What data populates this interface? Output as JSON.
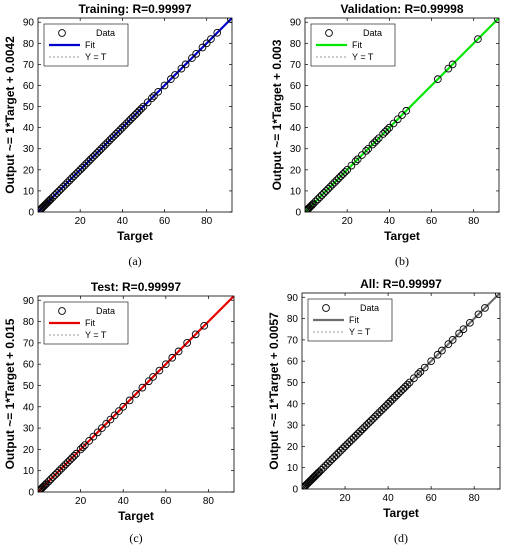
{
  "chart_data": [
    {
      "type": "scatter",
      "title": "Training: R=0.99997",
      "xlabel": "Target",
      "ylabel": "Output ~= 1*Target + 0.0042",
      "caption": "(a)",
      "xlim": [
        0,
        92
      ],
      "ylim": [
        0,
        92
      ],
      "xticks": [
        20,
        40,
        60,
        80
      ],
      "yticks": [
        0,
        10,
        20,
        30,
        40,
        50,
        60,
        70,
        80,
        90
      ],
      "fit_color": "#0000cc",
      "legend": [
        "Data",
        "Fit",
        "Y = T"
      ],
      "legend_position": "top-left",
      "fit": {
        "slope": 1,
        "intercept": 0.0042
      },
      "points": [
        0.5,
        1,
        1.5,
        2,
        2.5,
        3,
        3.5,
        4,
        4.5,
        5,
        5.5,
        6,
        7,
        8,
        9,
        10,
        11,
        12,
        13,
        14,
        15,
        16,
        17,
        18,
        19,
        20,
        21,
        22,
        23,
        24,
        25,
        26,
        27,
        28,
        29,
        30,
        31,
        32,
        33,
        34,
        35,
        36,
        37,
        38,
        39,
        40,
        41,
        42,
        43,
        44,
        45,
        46,
        47,
        48,
        49,
        50,
        52,
        54,
        55,
        57,
        60,
        63,
        65,
        68,
        70,
        73,
        75,
        78,
        80,
        82,
        85,
        91.5
      ]
    },
    {
      "type": "scatter",
      "title": "Validation: R=0.99998",
      "xlabel": "Target",
      "ylabel": "Output ~= 1*Target + 0.003",
      "caption": "(b)",
      "xlim": [
        0,
        92
      ],
      "ylim": [
        0,
        92
      ],
      "xticks": [
        20,
        40,
        60,
        80
      ],
      "yticks": [
        0,
        10,
        20,
        30,
        40,
        50,
        60,
        70,
        80,
        90
      ],
      "fit_color": "#00e600",
      "legend": [
        "Data",
        "Fit",
        "Y = T"
      ],
      "legend_position": "top-left",
      "fit": {
        "slope": 1,
        "intercept": 0.003
      },
      "points": [
        0.5,
        1,
        1.5,
        2,
        2.5,
        3,
        3.5,
        4,
        5,
        6,
        7,
        8,
        9,
        10,
        11,
        12,
        13,
        14,
        15,
        16,
        17,
        18,
        19,
        20,
        22,
        24,
        25,
        27,
        29,
        30,
        32,
        33,
        34,
        35,
        37,
        38,
        39,
        40,
        42,
        44,
        46,
        48,
        63,
        68,
        70,
        82,
        91.5
      ]
    },
    {
      "type": "scatter",
      "title": "Test: R=0.99997",
      "xlabel": "Target",
      "ylabel": "Output ~= 1*Target + 0.015",
      "caption": "(c)",
      "xlim": [
        0,
        92
      ],
      "ylim": [
        0,
        92
      ],
      "xticks": [
        20,
        40,
        60,
        80
      ],
      "yticks": [
        0,
        10,
        20,
        30,
        40,
        50,
        60,
        70,
        80,
        90
      ],
      "fit_color": "#e60000",
      "legend": [
        "Data",
        "Fit",
        "Y = T"
      ],
      "legend_position": "top-left",
      "fit": {
        "slope": 1,
        "intercept": 0.015
      },
      "points": [
        0.5,
        1,
        1.5,
        2,
        2.5,
        3,
        3.5,
        4,
        5,
        6,
        7,
        8,
        9,
        10,
        11,
        12,
        13,
        14,
        15,
        16,
        17,
        18,
        20,
        21,
        22,
        24,
        26,
        28,
        30,
        32,
        34,
        36,
        38,
        40,
        43,
        46,
        49,
        52,
        54,
        57,
        60,
        63,
        66,
        70,
        74,
        78
      ]
    },
    {
      "type": "scatter",
      "title": "All: R=0.99997",
      "xlabel": "Target",
      "ylabel": "Output ~= 1*Target + 0.0057",
      "caption": "(d)",
      "xlim": [
        0,
        92
      ],
      "ylim": [
        0,
        92
      ],
      "xticks": [
        20,
        40,
        60,
        80
      ],
      "yticks": [
        0,
        10,
        20,
        30,
        40,
        50,
        60,
        70,
        80,
        90
      ],
      "fit_color": "#6e6e6e",
      "legend": [
        "Data",
        "Fit",
        "Y = T"
      ],
      "legend_position": "top-left",
      "fit": {
        "slope": 1,
        "intercept": 0.0057
      },
      "points": [
        0.5,
        1,
        1.5,
        2,
        2.5,
        3,
        3.5,
        4,
        4.5,
        5,
        5.5,
        6,
        6.5,
        7,
        7.5,
        8,
        9,
        10,
        11,
        12,
        13,
        14,
        15,
        16,
        17,
        18,
        19,
        20,
        21,
        22,
        23,
        24,
        25,
        26,
        27,
        28,
        29,
        30,
        31,
        32,
        33,
        34,
        35,
        36,
        37,
        38,
        39,
        40,
        41,
        42,
        43,
        44,
        45,
        46,
        47,
        48,
        49,
        50,
        52,
        54,
        55,
        57,
        60,
        63,
        65,
        68,
        70,
        73,
        75,
        78,
        82,
        85,
        91.5
      ]
    }
  ]
}
